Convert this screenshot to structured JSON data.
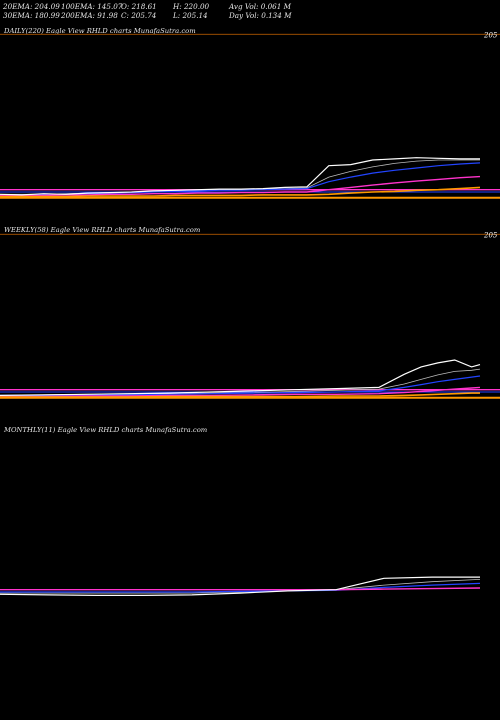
{
  "stats": {
    "row1": [
      "20EMA: 204.09",
      "100EMA: 145.07",
      "O: 218.61",
      "H: 220.00",
      "Avg Vol: 0.061 M"
    ],
    "row2": [
      "30EMA: 180.99",
      "200EMA: 91.98",
      "C: 205.74",
      "L: 205.14",
      "Day Vol: 0.134 M"
    ]
  },
  "colors": {
    "background": "#000000",
    "price": "#ffffff",
    "ema_blue": "#2244ff",
    "ema_pink": "#ff33cc",
    "ema_orange": "#ff9900",
    "level_line": "#cc6600",
    "grey": "#bbbbbb"
  },
  "chart_data": [
    {
      "type": "line",
      "title": "DAILY(220) Eagle View RHLD charts MunafaSutra.com",
      "price_label": "205",
      "ylim": [
        0,
        280
      ],
      "level": 220,
      "x": [
        0,
        10,
        20,
        30,
        40,
        50,
        60,
        70,
        80,
        90,
        100,
        110,
        120,
        130,
        140,
        150,
        160,
        170,
        180,
        190,
        200,
        210,
        219
      ],
      "series": [
        {
          "role": "price",
          "values": [
            10,
            9,
            11,
            10,
            12,
            13,
            14,
            16,
            17,
            18,
            19,
            19,
            20,
            22,
            23,
            60,
            62,
            70,
            72,
            74,
            73,
            72,
            72
          ]
        },
        {
          "role": "ema20",
          "values": [
            10,
            10,
            10,
            11,
            12,
            13,
            14,
            15,
            16,
            17,
            18,
            18,
            19,
            20,
            21,
            40,
            50,
            58,
            64,
            68,
            70,
            70,
            70
          ]
        },
        {
          "role": "ema30",
          "values": [
            9,
            9,
            10,
            10,
            11,
            12,
            13,
            14,
            15,
            16,
            17,
            17,
            18,
            19,
            20,
            32,
            40,
            47,
            52,
            56,
            60,
            63,
            65
          ]
        },
        {
          "role": "ema100",
          "values": [
            8,
            8,
            8,
            9,
            9,
            10,
            10,
            11,
            11,
            12,
            12,
            13,
            13,
            14,
            14,
            18,
            22,
            26,
            30,
            33,
            36,
            39,
            41
          ]
        },
        {
          "role": "ema200",
          "values": [
            6,
            6,
            6,
            6,
            7,
            7,
            7,
            7,
            8,
            8,
            8,
            8,
            9,
            9,
            9,
            10,
            12,
            14,
            15,
            17,
            18,
            20,
            22
          ]
        }
      ]
    },
    {
      "type": "line",
      "title": "WEEKLY(58) Eagle View RHLD charts MunafaSutra.com",
      "price_label": "205",
      "ylim": [
        0,
        280
      ],
      "level": 220,
      "x": [
        0,
        5,
        10,
        15,
        20,
        25,
        30,
        35,
        40,
        45,
        48,
        50,
        52,
        54,
        56,
        57
      ],
      "series": [
        {
          "role": "price",
          "values": [
            8,
            9,
            10,
            11,
            12,
            14,
            16,
            18,
            20,
            22,
            45,
            58,
            65,
            70,
            58,
            62
          ]
        },
        {
          "role": "ema20",
          "values": [
            8,
            9,
            10,
            10,
            11,
            12,
            13,
            15,
            17,
            19,
            28,
            36,
            44,
            50,
            52,
            54
          ]
        },
        {
          "role": "ema30",
          "values": [
            8,
            8,
            9,
            9,
            10,
            11,
            12,
            13,
            14,
            16,
            22,
            27,
            32,
            36,
            40,
            42
          ]
        },
        {
          "role": "ema100",
          "values": [
            6,
            6,
            7,
            7,
            8,
            8,
            9,
            10,
            10,
            11,
            13,
            15,
            17,
            19,
            21,
            22
          ]
        },
        {
          "role": "ema200",
          "values": [
            5,
            5,
            5,
            5,
            6,
            6,
            6,
            6,
            7,
            7,
            8,
            9,
            10,
            11,
            12,
            12
          ]
        }
      ]
    },
    {
      "type": "line",
      "title": "MONTHLY(11) Eagle View RHLD charts MunafaSutra.com",
      "ylim": [
        0,
        280
      ],
      "x": [
        0,
        1,
        2,
        3,
        4,
        5,
        6,
        7,
        8,
        9,
        10
      ],
      "series": [
        {
          "role": "price",
          "values": [
            10,
            9,
            8,
            8,
            9,
            12,
            16,
            18,
            38,
            40,
            40
          ]
        },
        {
          "role": "ema20",
          "values": [
            12,
            12,
            12,
            12,
            12,
            14,
            16,
            18,
            26,
            32,
            36
          ]
        },
        {
          "role": "ema30",
          "values": [
            14,
            14,
            14,
            14,
            14,
            15,
            16,
            17,
            22,
            26,
            29
          ]
        },
        {
          "role": "ema100",
          "values": [
            18,
            18,
            18,
            18,
            18,
            18,
            18,
            18,
            19,
            20,
            21
          ]
        }
      ]
    }
  ]
}
